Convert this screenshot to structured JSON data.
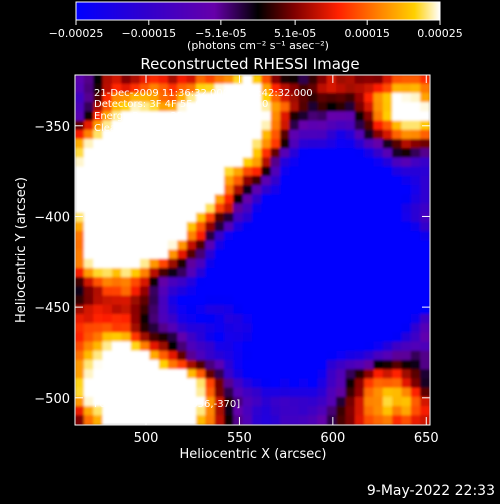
{
  "colorbar": {
    "tick_labels": [
      "-0.00025",
      "-0.00015",
      "-5.1e-05",
      "5.1e-05",
      "0.00015",
      "0.00025"
    ],
    "ticks": [
      -0.00025,
      -0.00015,
      -5.1e-05,
      5.1e-05,
      0.00015,
      0.00025
    ],
    "range": [
      -0.00025,
      0.00025
    ],
    "units_label": "(photons cm⁻² s⁻¹ asec⁻²)",
    "colormap": [
      "#0000ff",
      "#3300cc",
      "#6600aa",
      "#000000",
      "#800000",
      "#ff2000",
      "#ff8000",
      "#ffd000",
      "#ffffff"
    ]
  },
  "chart_data": {
    "type": "heatmap",
    "title": "Reconstructed RHESSI Image",
    "xlabel": "Heliocentric X (arcsec)",
    "ylabel": "Heliocentric Y (arcsec)",
    "xlim": [
      462,
      652
    ],
    "ylim": [
      -515,
      -322
    ],
    "x_ticks": [
      500,
      550,
      600,
      650
    ],
    "y_ticks": [
      -350,
      -400,
      -450,
      -500
    ],
    "peak_position": [
      556,
      -370
    ],
    "annotations": [
      "21-Dec-2009 11:36:32.000 to 11:42:32.000",
      "Detectors: 3F 4F 5F 6F 7F 8F, Att 0",
      "Energy Range: 25.0 - 50.0 keV",
      "Clean     Total counts: 7.73E+03"
    ],
    "peak_label": "Position of Peak = [556,-370]"
  },
  "timestamp": "9-May-2022 22:33"
}
